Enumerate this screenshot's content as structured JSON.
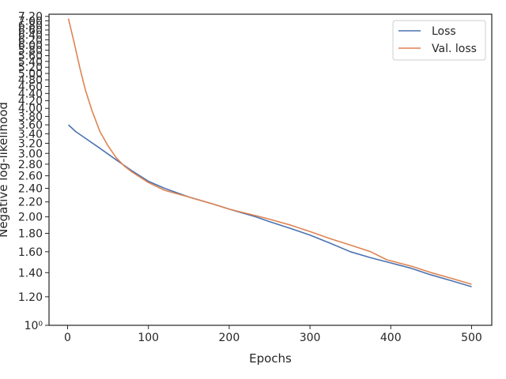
{
  "chart_data": {
    "type": "line",
    "xlabel": "Epochs",
    "ylabel": "Negative log-likelihood",
    "xlim": [
      -23,
      525
    ],
    "ylim": [
      1.0,
      7.3
    ],
    "yscale": "log",
    "grid": false,
    "legend": "top-right",
    "x_ticks": [
      0,
      100,
      200,
      300,
      400,
      500
    ],
    "x_tick_labels": [
      "0",
      "100",
      "200",
      "300",
      "400",
      "500"
    ],
    "y_ticks": [
      1.0,
      1.2,
      1.4,
      1.6,
      1.8,
      2.0,
      2.2,
      2.4,
      2.6,
      2.8,
      3.0,
      3.2,
      3.4,
      3.6,
      3.8,
      4.0,
      4.2,
      4.4,
      4.6,
      4.8,
      5.0,
      5.2,
      5.4,
      5.6,
      5.8,
      6.0,
      6.2,
      6.4,
      6.6,
      6.8,
      7.0,
      7.2
    ],
    "y_tick_labels": [
      "10⁰",
      "1.20",
      "1.40",
      "1.60",
      "1.80",
      "2.00",
      "2.20",
      "2.40",
      "2.60",
      "2.80",
      "3.00",
      "3.20",
      "3.40",
      "3.60",
      "3.80",
      "4.00",
      "4.20",
      "4.40",
      "4.60",
      "4.80",
      "5.00",
      "5.20",
      "5.40",
      "5.60",
      "5.80",
      "6.00",
      "6.20",
      "6.40",
      "6.60",
      "6.80",
      "7.00",
      "7.20"
    ],
    "series": [
      {
        "name": "Loss",
        "color": "#4c72b0",
        "x": [
          1,
          10,
          20,
          40,
          60,
          80,
          100,
          120,
          150,
          180,
          200,
          233,
          250,
          275,
          300,
          325,
          350,
          375,
          400,
          425,
          450,
          475,
          500
        ],
        "y": [
          3.6,
          3.45,
          3.33,
          3.1,
          2.88,
          2.68,
          2.51,
          2.4,
          2.27,
          2.17,
          2.1,
          2.0,
          1.94,
          1.86,
          1.78,
          1.69,
          1.6,
          1.54,
          1.49,
          1.44,
          1.38,
          1.33,
          1.28
        ]
      },
      {
        "name": "Val. loss",
        "color": "#dd8452",
        "x": [
          1,
          8,
          15,
          22,
          30,
          40,
          50,
          60,
          70,
          80,
          100,
          120,
          150,
          180,
          200,
          235,
          250,
          275,
          300,
          325,
          350,
          375,
          395,
          410,
          425,
          450,
          475,
          500
        ],
        "y": [
          7.1,
          6.1,
          5.2,
          4.5,
          3.95,
          3.45,
          3.15,
          2.92,
          2.77,
          2.66,
          2.49,
          2.37,
          2.27,
          2.17,
          2.1,
          2.01,
          1.97,
          1.9,
          1.82,
          1.74,
          1.67,
          1.6,
          1.52,
          1.49,
          1.46,
          1.4,
          1.35,
          1.3
        ]
      }
    ]
  }
}
